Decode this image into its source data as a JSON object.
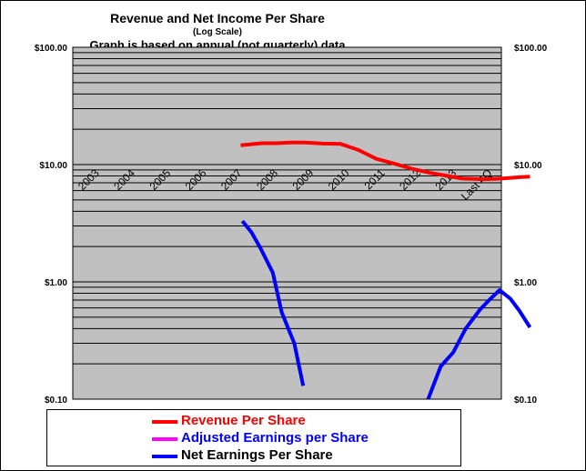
{
  "chart_data": {
    "type": "line",
    "title": "Revenue and Net Income Per Share",
    "subtitle": "(Log Scale)",
    "note": "Graph is based on annual (not quarterly) data",
    "y_scale": "log",
    "ylim": [
      0.1,
      100
    ],
    "y_ticks": [
      {
        "value": 100,
        "label": "$100.00"
      },
      {
        "value": 10,
        "label": "$10.00"
      },
      {
        "value": 1,
        "label": "$1.00"
      },
      {
        "value": 0.1,
        "label": "$0.10"
      }
    ],
    "categories": [
      "2003",
      "2004",
      "2005",
      "2006",
      "2007",
      "2008",
      "2009",
      "2010",
      "2011",
      "2012",
      "2013",
      "Last 4Q"
    ],
    "grid": true,
    "legend_position": "bottom",
    "series": [
      {
        "name": "Revenue Per Share",
        "color": "#ff0000",
        "points": [
          [
            4.2,
            14.6
          ],
          [
            4.8,
            15.2
          ],
          [
            5.2,
            15.2
          ],
          [
            5.6,
            15.4
          ],
          [
            6.0,
            15.4
          ],
          [
            6.5,
            15.1
          ],
          [
            7.0,
            15.0
          ],
          [
            7.5,
            13.3
          ],
          [
            8.0,
            11.2
          ],
          [
            8.5,
            10.2
          ],
          [
            9.0,
            9.2
          ],
          [
            9.5,
            8.5
          ],
          [
            10.0,
            8.0
          ],
          [
            10.4,
            7.6
          ],
          [
            11.0,
            7.5
          ],
          [
            11.5,
            7.6
          ],
          [
            12.0,
            7.8
          ],
          [
            12.3,
            7.9
          ]
        ]
      },
      {
        "name": "Adjusted Earnings per Share",
        "color": "#ff00ff",
        "points": []
      },
      {
        "name": "Net Earnings Per Share",
        "color": "#0000ff",
        "segments": [
          [
            [
              4.25,
              3.3
            ],
            [
              4.5,
              2.65
            ],
            [
              4.75,
              1.95
            ],
            [
              5.1,
              1.2
            ],
            [
              5.35,
              0.55
            ],
            [
              5.7,
              0.3
            ],
            [
              5.95,
              0.13
            ]
          ],
          [
            [
              9.45,
              0.1
            ],
            [
              9.8,
              0.19
            ],
            [
              10.15,
              0.25
            ],
            [
              10.5,
              0.4
            ],
            [
              10.9,
              0.58
            ],
            [
              11.2,
              0.72
            ],
            [
              11.45,
              0.85
            ],
            [
              11.75,
              0.72
            ],
            [
              12.0,
              0.57
            ],
            [
              12.3,
              0.41
            ]
          ]
        ]
      }
    ]
  }
}
